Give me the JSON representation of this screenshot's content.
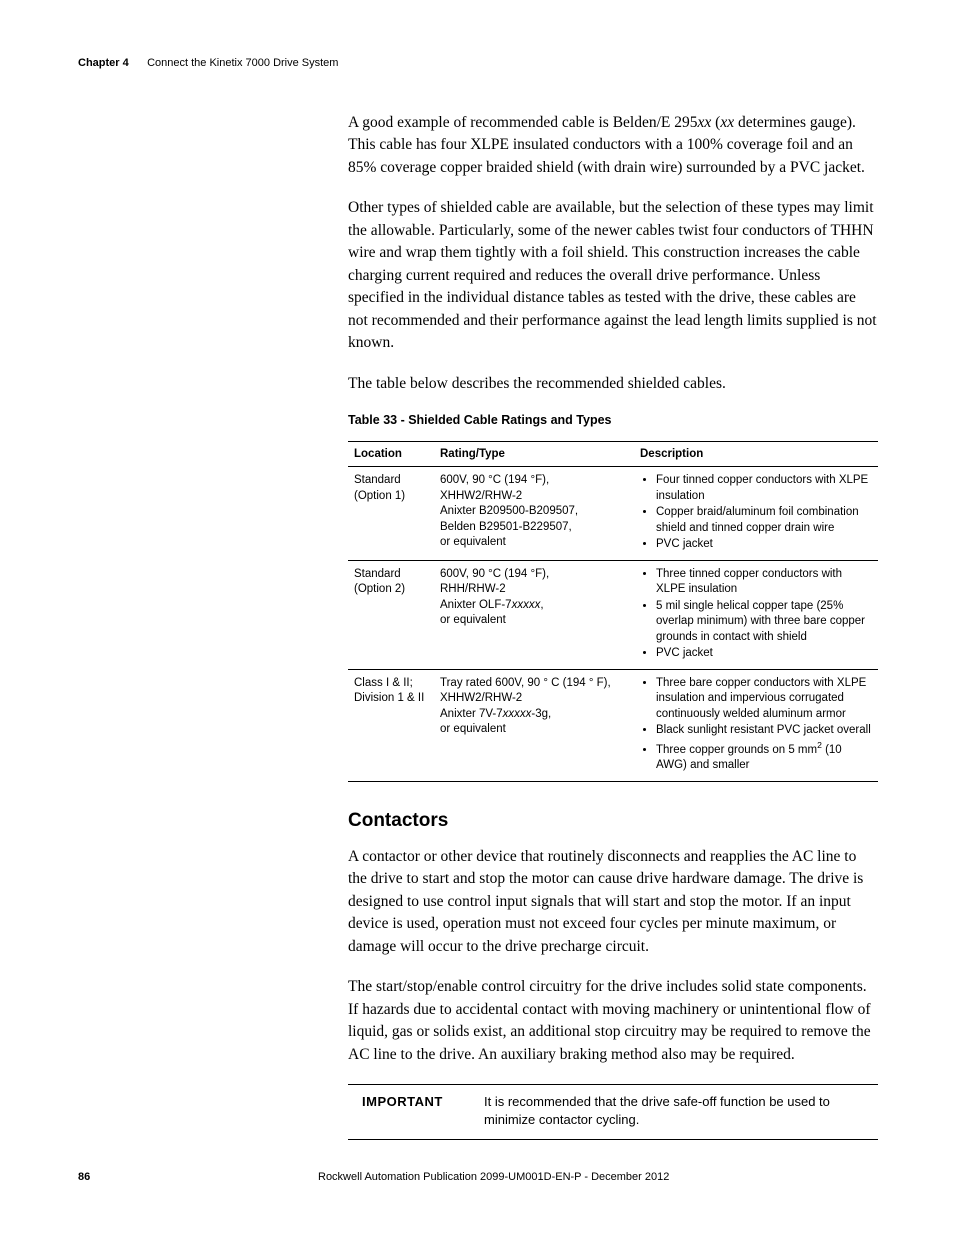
{
  "header": {
    "chapter_label": "Chapter 4",
    "chapter_title": "Connect the Kinetix 7000 Drive System"
  },
  "body": {
    "para1_pre": "A good example of recommended cable is Belden/E 295",
    "para1_xx1": "xx",
    "para1_mid": " (",
    "para1_xx2": "xx",
    "para1_post": " determines gauge). This cable has four XLPE insulated conductors with a 100% coverage foil and an 85% coverage copper braided shield (with drain wire) surrounded by a PVC jacket.",
    "para2": "Other types of shielded cable are available, but the selection of these types may limit the allowable. Particularly, some of the newer cables twist four conductors of THHN wire and wrap them tightly with a foil shield. This construction increases the cable charging current required and reduces the overall drive performance. Unless specified in the individual distance tables as tested with the drive, these cables are not recommended and their performance against the lead length limits supplied is not known.",
    "para3": "The table below describes the recommended shielded cables.",
    "table_caption": "Table 33 - Shielded Cable Ratings and Types",
    "table": {
      "headers": {
        "c0": "Location",
        "c1": "Rating/Type",
        "c2": "Description"
      },
      "rows": [
        {
          "loc_l1": "Standard",
          "loc_l2": "(Option 1)",
          "rating_l1": "600V, 90 °C (194 °F),",
          "rating_l2": "XHHW2/RHW-2",
          "rating_l3": "Anixter B209500-B209507,",
          "rating_l4": "Belden B29501-B229507,",
          "rating_l5": "or equivalent",
          "desc": [
            "Four tinned copper conductors with XLPE insulation",
            "Copper braid/aluminum foil combination shield and tinned copper drain wire",
            "PVC jacket"
          ]
        },
        {
          "loc_l1": "Standard",
          "loc_l2": "(Option 2)",
          "rating_l1": "600V, 90 °C (194 °F),",
          "rating_l2": "RHH/RHW-2",
          "rating_l3_pre": "Anixter OLF-7",
          "rating_l3_it": "xxxxx",
          "rating_l3_post": ",",
          "rating_l4": "or equivalent",
          "desc": [
            "Three tinned copper conductors with XLPE insulation",
            "5 mil single helical copper tape (25% overlap minimum) with three bare copper grounds in contact with shield",
            "PVC jacket"
          ]
        },
        {
          "loc_l1": "Class I & II;",
          "loc_l2": "Division 1 & II",
          "rating_l1": "Tray rated 600V, 90 ° C (194 ° F),",
          "rating_l2": "XHHW2/RHW-2",
          "rating_l3_pre": "Anixter 7V-7",
          "rating_l3_it": "xxxxx",
          "rating_l3_post": "-3g,",
          "rating_l4": "or equivalent",
          "desc_b1": "Three bare copper conductors with XLPE insulation and impervious corrugated continuously welded aluminum armor",
          "desc_b2": "Black sunlight resistant PVC jacket overall",
          "desc_b3_pre": "Three copper grounds on 5 mm",
          "desc_b3_sup": "2",
          "desc_b3_post": " (10 AWG) and smaller"
        }
      ]
    },
    "section_heading": "Contactors",
    "para4": "A contactor or other device that routinely disconnects and reapplies the AC line to the drive to start and stop the motor can cause drive hardware damage. The drive is designed to use control input signals that will start and stop the motor. If an input device is used, operation must not exceed four cycles per minute maximum, or damage will occur to the drive precharge circuit.",
    "para5": "The start/stop/enable control circuitry for the drive includes solid state components. If hazards due to accidental contact with moving machinery or unintentional flow of liquid, gas or solids exist, an additional stop circuitry may be required to remove the AC line to the drive. An auxiliary braking method also may be required.",
    "important_label": "IMPORTANT",
    "important_text": "It is recommended that the drive safe-off function be used to minimize contactor cycling."
  },
  "footer": {
    "page_number": "86",
    "publication": "Rockwell Automation Publication 2099-UM001D-EN-P - December 2012"
  }
}
